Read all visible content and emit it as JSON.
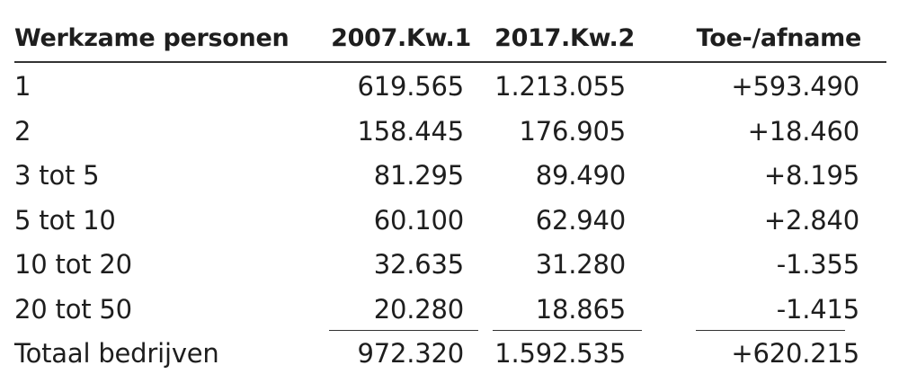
{
  "table": {
    "headers": [
      "Werkzame personen",
      "2007.Kw.1",
      "2017.Kw.2",
      "Toe-/afname"
    ],
    "rows": [
      [
        "1",
        "619.565",
        "1.213.055",
        "+593.490"
      ],
      [
        "2",
        "158.445",
        "176.905",
        "+18.460"
      ],
      [
        "3 tot 5",
        "81.295",
        "89.490",
        "+8.195"
      ],
      [
        "5 tot 10",
        "60.100",
        "62.940",
        "+2.840"
      ],
      [
        "10 tot 20",
        "32.635",
        "31.280",
        "-1.355"
      ],
      [
        "20 tot 50",
        "20.280",
        "18.865",
        "-1.415"
      ]
    ],
    "total": [
      "Totaal bedrijven",
      "972.320",
      "1.592.535",
      "+620.215"
    ]
  }
}
